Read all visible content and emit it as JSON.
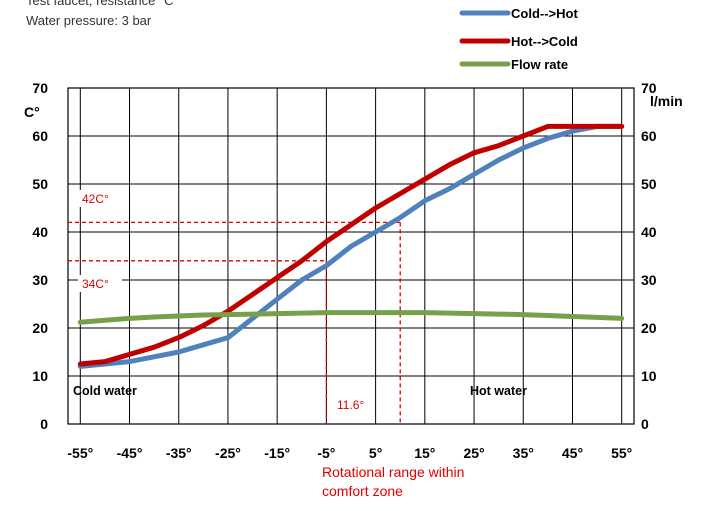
{
  "header": {
    "line1": "Test faucet, resistance °C",
    "line2": "Water pressure: 3 bar"
  },
  "chart_data": {
    "type": "line",
    "x": [
      -55,
      -50,
      -45,
      -40,
      -35,
      -30,
      -25,
      -20,
      -15,
      -10,
      -5,
      0,
      5,
      10,
      15,
      20,
      25,
      30,
      35,
      40,
      45,
      50,
      55
    ],
    "x_tick_labels": [
      "-55°",
      "-45°",
      "-35°",
      "-25°",
      "-15°",
      "-5°",
      "5°",
      "15°",
      "25°",
      "35°",
      "45°",
      "55°"
    ],
    "xlim": [
      -57.5,
      57.5
    ],
    "ylabel_left": "C°",
    "ylabel_right": "l/min",
    "ylim": [
      0,
      70
    ],
    "y_ticks": [
      0,
      10,
      20,
      30,
      40,
      50,
      60,
      70
    ],
    "grid": true,
    "legend_position": "top-right",
    "series": [
      {
        "name": "Cold-->Hot",
        "color": "#4f81bd",
        "values": [
          12,
          12.5,
          13,
          14,
          15,
          16.5,
          18,
          22,
          26,
          30,
          33,
          37,
          40,
          43,
          46.5,
          49,
          52,
          55,
          57.5,
          59.5,
          61,
          62,
          62
        ]
      },
      {
        "name": "Hot-->Cold",
        "color": "#c00000",
        "values": [
          12.5,
          13,
          14.5,
          16,
          18,
          20.5,
          23.5,
          27,
          30.5,
          34,
          38,
          41.5,
          45,
          48,
          51,
          54,
          56.5,
          58,
          60,
          62,
          62,
          62,
          62
        ]
      },
      {
        "name": "Flow rate",
        "color": "#77a04a",
        "values": [
          21.2,
          21.6,
          22,
          22.3,
          22.5,
          22.7,
          22.8,
          22.9,
          23,
          23.1,
          23.2,
          23.2,
          23.2,
          23.2,
          23.2,
          23.1,
          23,
          22.9,
          22.8,
          22.6,
          22.4,
          22.2,
          22
        ]
      }
    ],
    "annotations": {
      "hline_42": {
        "y": 42,
        "x_end": 10,
        "label": "42C°"
      },
      "hline_34": {
        "y": 34,
        "x_end": -5,
        "label": "34C°"
      },
      "vline_left_x": -5,
      "vline_right_x": 10,
      "vline_top_y": 42,
      "range_label": "11.6°",
      "cold_label": "Cold water",
      "hot_label": "Hot water",
      "caption_line1": "Rotational range within",
      "caption_line2": "comfort zone",
      "color": "#e00000"
    }
  }
}
